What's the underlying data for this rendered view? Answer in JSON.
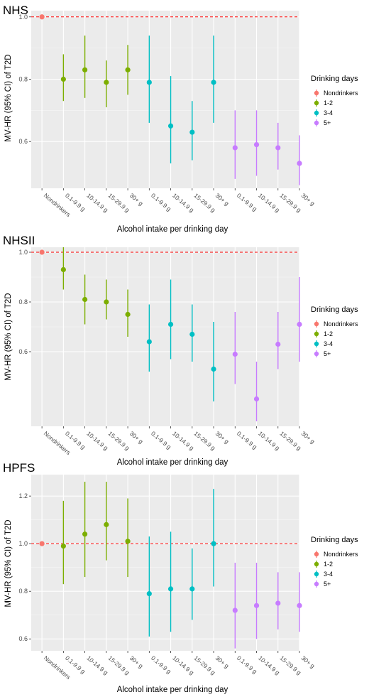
{
  "legend": {
    "title": "Drinking days",
    "items": [
      {
        "label": "Nondrinkers",
        "color": "#F8766D"
      },
      {
        "label": "1-2",
        "color": "#7CAE00"
      },
      {
        "label": "3-4",
        "color": "#00BFC4"
      },
      {
        "label": "5+",
        "color": "#C77CFF"
      }
    ]
  },
  "chart_data": [
    {
      "type": "scatter",
      "title": "NHS",
      "xlabel": "Alcohol intake per drinking day",
      "ylabel": "MV-HR (95% CI) of T2D",
      "categories": [
        "Nondrinkers",
        "0.1-9.9 g",
        "10-14.9 g",
        "15-29.9 g",
        "30+ g",
        "0.1-9.9 g",
        "10-14.9 g",
        "15-29.9 g",
        "30+ g",
        "0.1-9.9 g",
        "10-14.9 g",
        "15-29.9 g",
        "30+ g"
      ],
      "groups": [
        0,
        1,
        1,
        1,
        1,
        2,
        2,
        2,
        2,
        3,
        3,
        3,
        3
      ],
      "hr": [
        1.0,
        0.8,
        0.83,
        0.79,
        0.83,
        0.79,
        0.65,
        0.63,
        0.79,
        0.58,
        0.59,
        0.58,
        0.53
      ],
      "lower": [
        1.0,
        0.73,
        0.74,
        0.71,
        0.75,
        0.66,
        0.53,
        0.54,
        0.66,
        0.48,
        0.49,
        0.51,
        0.46
      ],
      "upper": [
        1.0,
        0.88,
        0.94,
        0.86,
        0.91,
        0.94,
        0.81,
        0.73,
        0.94,
        0.7,
        0.7,
        0.66,
        0.62
      ],
      "ylim": [
        0.45,
        1.02
      ],
      "yticks": [
        0.6,
        0.8,
        1.0
      ],
      "ytick_labels": [
        "0.6",
        "0.8",
        "1.0"
      ],
      "reference_line": 1.0,
      "grid": true,
      "legend_position": "right"
    },
    {
      "type": "scatter",
      "title": "NHSII",
      "xlabel": "Alcohol intake per drinking day",
      "ylabel": "MV-HR (95% CI) of T2D",
      "categories": [
        "Nondrinkers",
        "0.1-9.9 g",
        "10-14.9 g",
        "15-29.9 g",
        "30+ g",
        "0.1-9.9 g",
        "10-14.9 g",
        "15-29.9 g",
        "30+ g",
        "0.1-9.9 g",
        "10-14.9 g",
        "15-29.9 g",
        "30+ g"
      ],
      "groups": [
        0,
        1,
        1,
        1,
        1,
        2,
        2,
        2,
        2,
        3,
        3,
        3,
        3
      ],
      "hr": [
        1.0,
        0.93,
        0.81,
        0.8,
        0.75,
        0.64,
        0.71,
        0.67,
        0.53,
        0.59,
        0.41,
        0.63,
        0.71
      ],
      "lower": [
        1.0,
        0.85,
        0.71,
        0.73,
        0.66,
        0.52,
        0.57,
        0.56,
        0.4,
        0.47,
        0.32,
        0.53,
        0.56
      ],
      "upper": [
        1.0,
        1.02,
        0.91,
        0.89,
        0.85,
        0.79,
        0.89,
        0.79,
        0.72,
        0.76,
        0.56,
        0.76,
        0.9
      ],
      "ylim": [
        0.3,
        1.02
      ],
      "yticks": [
        0.6,
        0.8,
        1.0
      ],
      "ytick_labels": [
        "0.6",
        "0.8",
        "1.0"
      ],
      "reference_line": 1.0,
      "grid": true,
      "legend_position": "right"
    },
    {
      "type": "scatter",
      "title": "HPFS",
      "xlabel": "Alcohol intake per drinking day",
      "ylabel": "MV-HR (95% CI) of T2D",
      "categories": [
        "Nondrinkers",
        "0.1-9.9 g",
        "10-14.9 g",
        "15-29.9 g",
        "30+ g",
        "0.1-9.9 g",
        "10-14.9 g",
        "15-29.9 g",
        "30+ g",
        "0.1-9.9 g",
        "10-14.9 g",
        "15-29.9 g",
        "30+ g"
      ],
      "groups": [
        0,
        1,
        1,
        1,
        1,
        2,
        2,
        2,
        2,
        3,
        3,
        3,
        3
      ],
      "hr": [
        1.0,
        0.99,
        1.04,
        1.08,
        1.01,
        0.79,
        0.81,
        0.81,
        1.0,
        0.72,
        0.74,
        0.75,
        0.74
      ],
      "lower": [
        1.0,
        0.83,
        0.86,
        0.93,
        0.86,
        0.61,
        0.63,
        0.68,
        0.82,
        0.56,
        0.6,
        0.64,
        0.63
      ],
      "upper": [
        1.0,
        1.18,
        1.26,
        1.26,
        1.19,
        1.03,
        1.05,
        0.98,
        1.23,
        0.92,
        0.92,
        0.88,
        0.88
      ],
      "ylim": [
        0.55,
        1.29
      ],
      "yticks": [
        0.6,
        0.8,
        1.0,
        1.2
      ],
      "ytick_labels": [
        "0.6",
        "0.8",
        "1.0",
        "1.2"
      ],
      "reference_line": 1.0,
      "grid": true,
      "legend_position": "right"
    }
  ]
}
